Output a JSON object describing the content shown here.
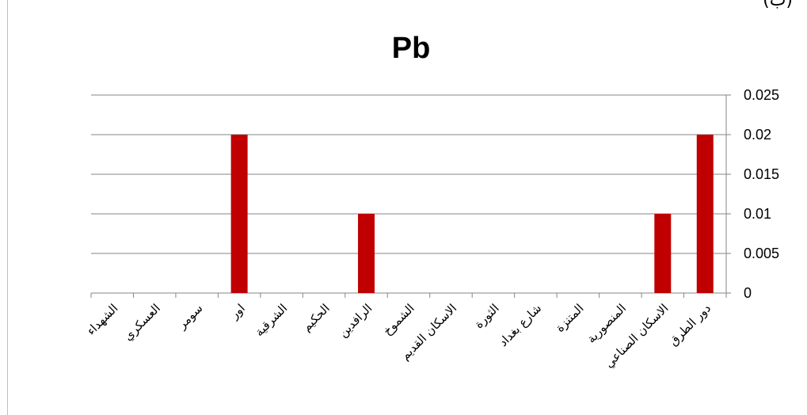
{
  "corner_text": "(ب)",
  "chart_data": {
    "type": "bar",
    "title": "Pb",
    "xlabel": "",
    "ylabel": "",
    "categories": [
      "الشهداء",
      "العسكري",
      "سومر",
      "اور",
      "الشرقية",
      "الحكيم",
      "الرافدين",
      "الشموخ",
      "الاسكان القديم",
      "الثورة",
      "شارع بغداد",
      "المتنزة",
      "المنصورية",
      "الاسكان الصناعي",
      "دور الطرق"
    ],
    "values": [
      0,
      0,
      0,
      0.02,
      0,
      0,
      0.01,
      0,
      0,
      0,
      0,
      0,
      0,
      0.01,
      0.02
    ],
    "ylim": [
      0,
      0.025
    ],
    "yticks": [
      "0",
      "0.005",
      "0.01",
      "0.015",
      "0.02",
      "0.025"
    ],
    "ytick_values": [
      0,
      0.005,
      0.01,
      0.015,
      0.02,
      0.025
    ],
    "y_axis_side": "right",
    "grid": true,
    "bar_color": "#c00000",
    "grid_color": "#868686"
  }
}
